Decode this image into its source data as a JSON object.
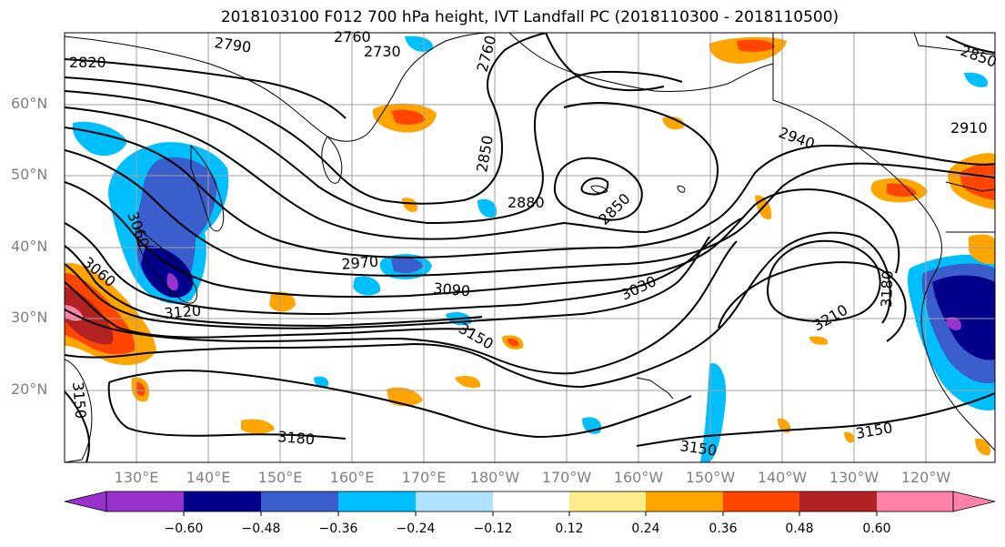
{
  "title": "2018103100 F012 700 hPa height, IVT Landfall PC (2018110300 - 2018110500)",
  "lat_labels": [
    "60°N",
    "50°N",
    "40°N",
    "30°N",
    "20°N"
  ],
  "lon_labels": [
    "130°E",
    "140°E",
    "150°E",
    "160°E",
    "170°E",
    "180°W",
    "170°W",
    "160°W",
    "150°W",
    "140°W",
    "130°W",
    "120°W"
  ],
  "contour_labels": [
    "2820",
    "2790",
    "2760",
    "2730",
    "2760",
    "2850",
    "2880",
    "2850",
    "2940",
    "2910",
    "2850",
    "3060",
    "3060",
    "2970",
    "3090",
    "3030",
    "3120",
    "3150",
    "3210",
    "3180",
    "3180",
    "3150",
    "3150",
    "3150"
  ],
  "colorbar": {
    "tick_labels": [
      "−0.60",
      "−0.48",
      "−0.36",
      "−0.24",
      "−0.12",
      "0.12",
      "0.24",
      "0.36",
      "0.48",
      "0.60"
    ],
    "colors": [
      "#9932cc",
      "#00008b",
      "#3a5fcd",
      "#00bfff",
      "#b0e2ff",
      "#ffffff",
      "#ffec8b",
      "#ffa500",
      "#ff4500",
      "#b22222",
      "#ff82ab"
    ]
  }
}
